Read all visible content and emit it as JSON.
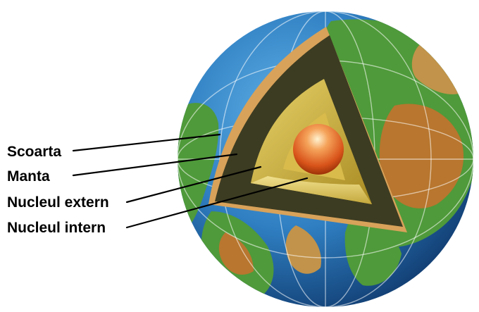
{
  "labels": {
    "crust": "Scoarta",
    "mantle": "Manta",
    "outer_core": "Nucleul extern",
    "inner_core": "Nucleul intern"
  },
  "colors": {
    "ocean": "#2f7fc2",
    "land_green": "#4f9a3a",
    "land_brown": "#b8762e",
    "crust": "#3c3c22",
    "mantle": "#c7a83a",
    "outer_core": "#e3c96b",
    "inner_core": "#e0601c",
    "rim": "#d8a25a"
  }
}
